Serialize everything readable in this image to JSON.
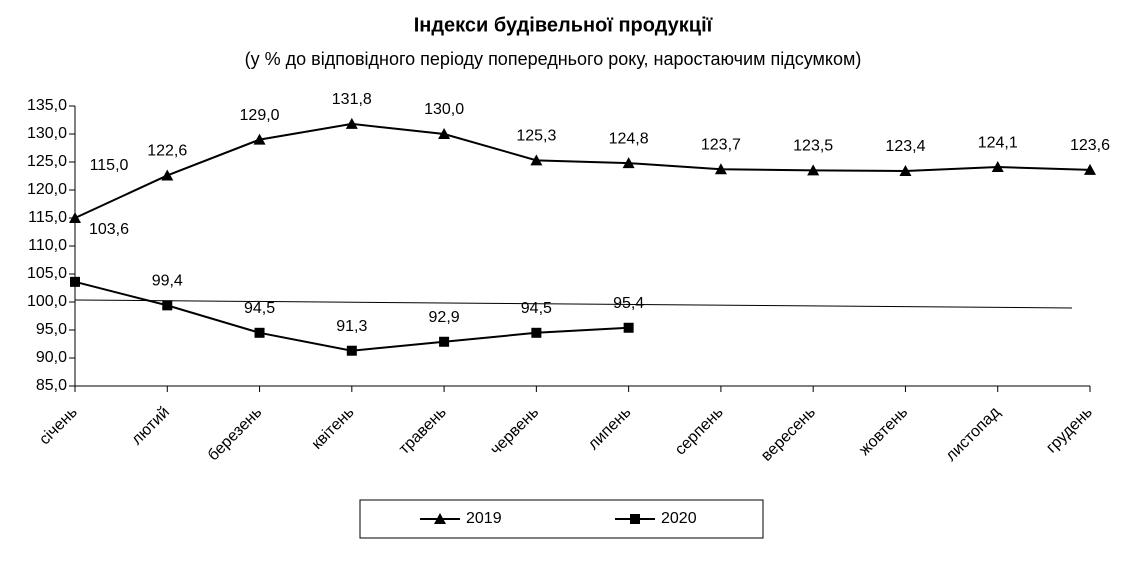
{
  "chart_data": {
    "type": "line",
    "title": "Індекси будівельної продукції",
    "subtitle": "(у % до відповідного періоду попереднього року, наростаючим підсумком)",
    "categories": [
      "січень",
      "лютий",
      "березень",
      "квітень",
      "травень",
      "червень",
      "липень",
      "серпень",
      "вересень",
      "жовтень",
      "листопад",
      "грудень"
    ],
    "series": [
      {
        "name": "2019",
        "color": "#000000",
        "marker": "triangle",
        "values": [
          115.0,
          122.6,
          129.0,
          131.8,
          130.0,
          125.3,
          124.8,
          123.7,
          123.5,
          123.4,
          124.1,
          123.6
        ],
        "value_labels": [
          "115,0",
          "122,6",
          "129,0",
          "131,8",
          "130,0",
          "125,3",
          "124,8",
          "123,7",
          "123,5",
          "123,4",
          "124,1",
          "123,6"
        ]
      },
      {
        "name": "2020",
        "color": "#000000",
        "marker": "square",
        "values": [
          103.6,
          99.4,
          94.5,
          91.3,
          92.9,
          94.5,
          95.4,
          null,
          null,
          null,
          null,
          null
        ],
        "value_labels": [
          "103,6",
          "99,4",
          "94,5",
          "91,3",
          "92,9",
          "94,5",
          "95,4",
          null,
          null,
          null,
          null,
          null
        ]
      }
    ],
    "ylim": [
      85,
      135
    ],
    "yticks": [
      {
        "value": 85,
        "label": "85,0"
      },
      {
        "value": 90,
        "label": "90,0"
      },
      {
        "value": 95,
        "label": "95,0"
      },
      {
        "value": 100,
        "label": "100,0"
      },
      {
        "value": 105,
        "label": "105,0"
      },
      {
        "value": 110,
        "label": "110,0"
      },
      {
        "value": 115,
        "label": "115,0"
      },
      {
        "value": 120,
        "label": "120,0"
      },
      {
        "value": 125,
        "label": "125,0"
      },
      {
        "value": 130,
        "label": "130,0"
      },
      {
        "value": 135,
        "label": "135,0"
      }
    ],
    "grid": false,
    "legend": "bottom"
  }
}
